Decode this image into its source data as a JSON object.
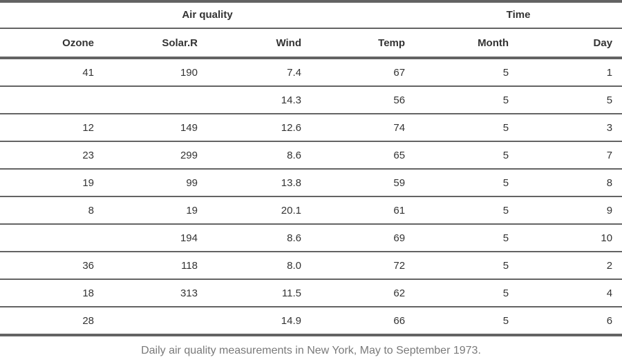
{
  "spanners": [
    {
      "label": "Air quality"
    },
    {
      "label": "Time"
    }
  ],
  "columns": [
    "Ozone",
    "Solar.R",
    "Wind",
    "Temp",
    "Month",
    "Day"
  ],
  "rows": [
    [
      "41",
      "190",
      "7.4",
      "67",
      "5",
      "1"
    ],
    [
      "",
      "",
      "14.3",
      "56",
      "5",
      "5"
    ],
    [
      "12",
      "149",
      "12.6",
      "74",
      "5",
      "3"
    ],
    [
      "23",
      "299",
      "8.6",
      "65",
      "5",
      "7"
    ],
    [
      "19",
      "99",
      "13.8",
      "59",
      "5",
      "8"
    ],
    [
      "8",
      "19",
      "20.1",
      "61",
      "5",
      "9"
    ],
    [
      "",
      "194",
      "8.6",
      "69",
      "5",
      "10"
    ],
    [
      "36",
      "118",
      "8.0",
      "72",
      "5",
      "2"
    ],
    [
      "18",
      "313",
      "11.5",
      "62",
      "5",
      "4"
    ],
    [
      "28",
      "",
      "14.9",
      "66",
      "5",
      "6"
    ]
  ],
  "caption": "Daily air quality measurements in New York, May to September 1973."
}
